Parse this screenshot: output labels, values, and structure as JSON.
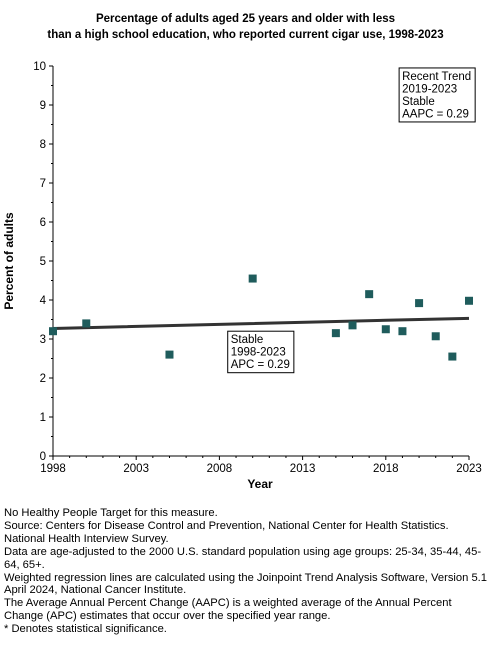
{
  "chart_data": {
    "type": "scatter",
    "title_lines": [
      "Percentage of adults aged 25 years and older with less",
      "than a high school education, who reported current cigar use, 1998-2023"
    ],
    "xlabel": "Year",
    "ylabel": "Percent of adults",
    "xlim": [
      1998,
      2023
    ],
    "ylim": [
      0,
      10
    ],
    "x_ticks": [
      1998,
      2003,
      2008,
      2013,
      2018,
      2023
    ],
    "y_ticks": [
      0,
      1,
      2,
      3,
      4,
      5,
      6,
      7,
      8,
      9,
      10
    ],
    "grid": false,
    "marker_color": "#1f5c5c",
    "trend_color": "#333333",
    "points": [
      {
        "x": 1998,
        "y": 3.2
      },
      {
        "x": 2000,
        "y": 3.4
      },
      {
        "x": 2005,
        "y": 2.6
      },
      {
        "x": 2010,
        "y": 4.55
      },
      {
        "x": 2015,
        "y": 3.15
      },
      {
        "x": 2016,
        "y": 3.35
      },
      {
        "x": 2017,
        "y": 4.15
      },
      {
        "x": 2018,
        "y": 3.25
      },
      {
        "x": 2019,
        "y": 3.2
      },
      {
        "x": 2020,
        "y": 3.92
      },
      {
        "x": 2021,
        "y": 3.07
      },
      {
        "x": 2022,
        "y": 2.55
      },
      {
        "x": 2023,
        "y": 3.98
      }
    ],
    "trend": [
      {
        "x": 1998,
        "y": 3.27
      },
      {
        "x": 2018,
        "y": 3.48
      },
      {
        "x": 2023,
        "y": 3.53
      }
    ],
    "annotations": [
      {
        "lines": [
          "Recent Trend",
          "2019-2023",
          "Stable",
          "AAPC =  0.29"
        ],
        "anchor_x": 2018.8,
        "anchor_y": 9.95
      },
      {
        "lines": [
          "Stable",
          "1998-2023",
          "APC =  0.29"
        ],
        "anchor_x": 2008.5,
        "anchor_y": 3.2
      }
    ]
  },
  "footnotes": [
    "No Healthy People Target for this measure.",
    "Source: Centers for Disease Control and Prevention, National Center for Health Statistics. National Health Interview Survey.",
    "Data are age-adjusted to the 2000 U.S. standard population using age groups: 25-34, 35-44, 45-64, 65+.",
    "Weighted regression lines are calculated using the Joinpoint Trend Analysis Software, Version 5.1 April 2024, National Cancer Institute.",
    "The Average Annual Percent Change (AAPC) is a weighted average of the Annual Percent Change (APC) estimates that occur over the specified year range.",
    "* Denotes statistical significance."
  ]
}
